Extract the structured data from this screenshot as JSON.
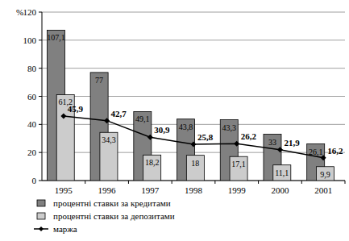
{
  "chart_data": {
    "type": "bar",
    "y_label": "%",
    "categories": [
      "1995",
      "1996",
      "1997",
      "1998",
      "1999",
      "2000",
      "2001"
    ],
    "series": [
      {
        "name": "процентні ставки за кредитами",
        "color": "#808080",
        "values": [
          107.1,
          77,
          49.1,
          43.8,
          43.3,
          33,
          26.1
        ],
        "value_labels": [
          "107,1",
          "77",
          "49,1",
          "43,8",
          "43,3",
          "33",
          "26,1"
        ]
      },
      {
        "name": "процентні ставки за депозитами",
        "color": "#cccccc",
        "values": [
          61.2,
          34.3,
          18.2,
          18,
          17.1,
          11.1,
          9.9
        ],
        "value_labels": [
          "61,2",
          "34,3",
          "18,2",
          "18",
          "17,1",
          "11,1",
          "9,9"
        ]
      },
      {
        "name": "маржа",
        "type": "line",
        "color": "#000000",
        "marker": "diamond",
        "values": [
          45.9,
          42.7,
          30.9,
          25.8,
          26.2,
          21.9,
          16.2
        ],
        "value_labels": [
          "45,9",
          "42,7",
          "30,9",
          "25,8",
          "26,2",
          "21,9",
          "16,2"
        ]
      }
    ],
    "ylim": [
      0,
      120
    ],
    "yticks": [
      0,
      20,
      40,
      60,
      80,
      100,
      120
    ],
    "grid": true,
    "data_labels": true,
    "legend": "bottom"
  }
}
